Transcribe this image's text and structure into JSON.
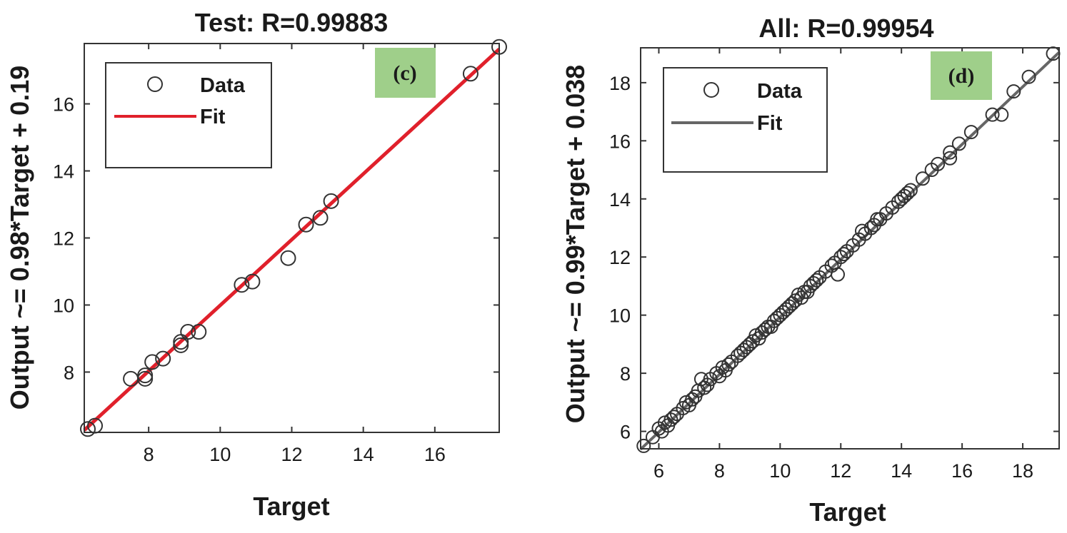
{
  "chart_data": [
    {
      "type": "scatter",
      "title": "Test: R=0.99883",
      "xlabel": "Target",
      "ylabel": "Output ~= 0.98*Target + 0.19",
      "xlim": [
        6.2,
        17.8
      ],
      "ylim": [
        6.2,
        17.8
      ],
      "xticks": [
        8,
        10,
        12,
        14,
        16
      ],
      "yticks": [
        8,
        10,
        12,
        14,
        16
      ],
      "grid": false,
      "legend_position": "top-left",
      "panel_tag": "(c)",
      "panel_tag_color": "#9fcf8a",
      "fit": {
        "slope": 0.98,
        "intercept": 0.19,
        "color": "#e0202b"
      },
      "marker_color": "#333333",
      "series": [
        {
          "name": "Data",
          "x": [
            6.3,
            6.5,
            7.5,
            7.9,
            7.9,
            8.1,
            8.4,
            8.9,
            8.9,
            9.1,
            9.4,
            10.6,
            10.9,
            11.9,
            12.4,
            12.8,
            13.1,
            17.0,
            17.8
          ],
          "y": [
            6.3,
            6.4,
            7.8,
            7.8,
            7.9,
            8.3,
            8.4,
            8.8,
            8.9,
            9.2,
            9.2,
            10.6,
            10.7,
            11.4,
            12.4,
            12.6,
            13.1,
            16.9,
            17.7
          ]
        },
        {
          "name": "Fit"
        }
      ]
    },
    {
      "type": "scatter",
      "title": "All: R=0.99954",
      "xlabel": "Target",
      "ylabel": "Output ~= 0.99*Target + 0.038",
      "xlim": [
        5.4,
        19.2
      ],
      "ylim": [
        5.4,
        19.2
      ],
      "xticks": [
        6,
        8,
        10,
        12,
        14,
        16,
        18
      ],
      "yticks": [
        6,
        8,
        10,
        12,
        14,
        16,
        18
      ],
      "grid": false,
      "legend_position": "top-left",
      "panel_tag": "(d)",
      "panel_tag_color": "#9fcf8a",
      "fit": {
        "slope": 0.99,
        "intercept": 0.038,
        "color": "#666666"
      },
      "marker_color": "#333333",
      "series": [
        {
          "name": "Data",
          "x": [
            5.5,
            5.8,
            6.0,
            6.1,
            6.2,
            6.3,
            6.4,
            6.5,
            6.6,
            6.8,
            6.9,
            7.0,
            7.1,
            7.2,
            7.3,
            7.4,
            7.5,
            7.6,
            7.7,
            7.9,
            8.0,
            8.1,
            8.2,
            8.3,
            8.4,
            8.6,
            8.7,
            8.8,
            8.9,
            9.0,
            9.1,
            9.2,
            9.3,
            9.4,
            9.5,
            9.6,
            9.7,
            9.8,
            9.9,
            10.0,
            10.1,
            10.2,
            10.3,
            10.4,
            10.5,
            10.6,
            10.7,
            10.8,
            10.9,
            11.0,
            11.1,
            11.2,
            11.3,
            11.5,
            11.7,
            11.8,
            11.9,
            12.0,
            12.1,
            12.2,
            12.4,
            12.6,
            12.7,
            12.8,
            13.0,
            13.1,
            13.2,
            13.3,
            13.5,
            13.7,
            13.9,
            14.0,
            14.1,
            14.2,
            14.3,
            14.7,
            15.0,
            15.2,
            15.6,
            15.6,
            15.9,
            16.3,
            17.0,
            17.3,
            17.7,
            18.2,
            19.0
          ],
          "y": [
            5.5,
            5.8,
            6.1,
            6.0,
            6.3,
            6.2,
            6.4,
            6.5,
            6.6,
            6.8,
            7.0,
            6.9,
            7.1,
            7.2,
            7.4,
            7.8,
            7.5,
            7.6,
            7.8,
            8.0,
            7.9,
            8.2,
            8.1,
            8.3,
            8.4,
            8.6,
            8.7,
            8.8,
            8.9,
            9.0,
            9.1,
            9.3,
            9.2,
            9.4,
            9.5,
            9.6,
            9.6,
            9.8,
            9.9,
            10.0,
            10.1,
            10.2,
            10.3,
            10.4,
            10.5,
            10.7,
            10.6,
            10.8,
            10.8,
            11.0,
            11.1,
            11.2,
            11.3,
            11.5,
            11.7,
            11.8,
            11.4,
            12.0,
            12.1,
            12.2,
            12.4,
            12.6,
            12.9,
            12.8,
            13.0,
            13.1,
            13.3,
            13.3,
            13.5,
            13.7,
            13.9,
            14.0,
            14.1,
            14.2,
            14.3,
            14.7,
            15.0,
            15.2,
            15.6,
            15.4,
            15.9,
            16.3,
            16.9,
            16.9,
            17.7,
            18.2,
            19.0
          ]
        },
        {
          "name": "Fit"
        }
      ]
    }
  ]
}
